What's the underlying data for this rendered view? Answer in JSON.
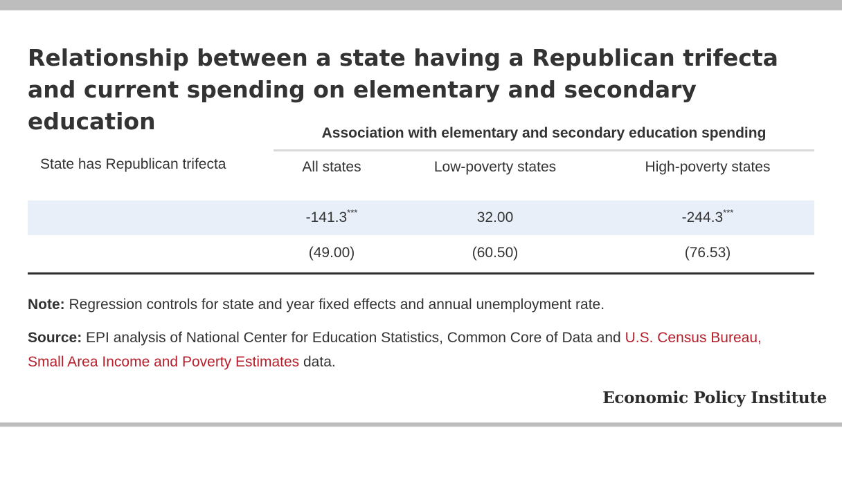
{
  "title": "Relationship between a state having a Republican trifecta and current spending on elementary and secondary education",
  "table": {
    "group_header": "Association with elementary and secondary education spending",
    "row_label": "State has Republican trifecta",
    "columns": [
      "All states",
      "Low-poverty states",
      "High-poverty states"
    ],
    "coefficients": [
      {
        "value": "-141.3",
        "stars": "***"
      },
      {
        "value": "32.00",
        "stars": ""
      },
      {
        "value": "-244.3",
        "stars": "***"
      }
    ],
    "standard_errors": [
      "(49.00)",
      "(60.50)",
      "(76.53)"
    ],
    "row_shading_color": "#e8eff9"
  },
  "note": {
    "label": "Note:",
    "text": " Regression controls for state and year fixed effects and annual unemployment rate."
  },
  "source": {
    "label": "Source:",
    "text_before": " EPI analysis of National Center for Education Statistics, Common Core of Data and ",
    "link_text": "U.S. Census Bureau, Small Area Income and Poverty Estimates",
    "text_after": " data.",
    "link_color": "#b41f2b"
  },
  "brand": "Economic Policy Institute"
}
